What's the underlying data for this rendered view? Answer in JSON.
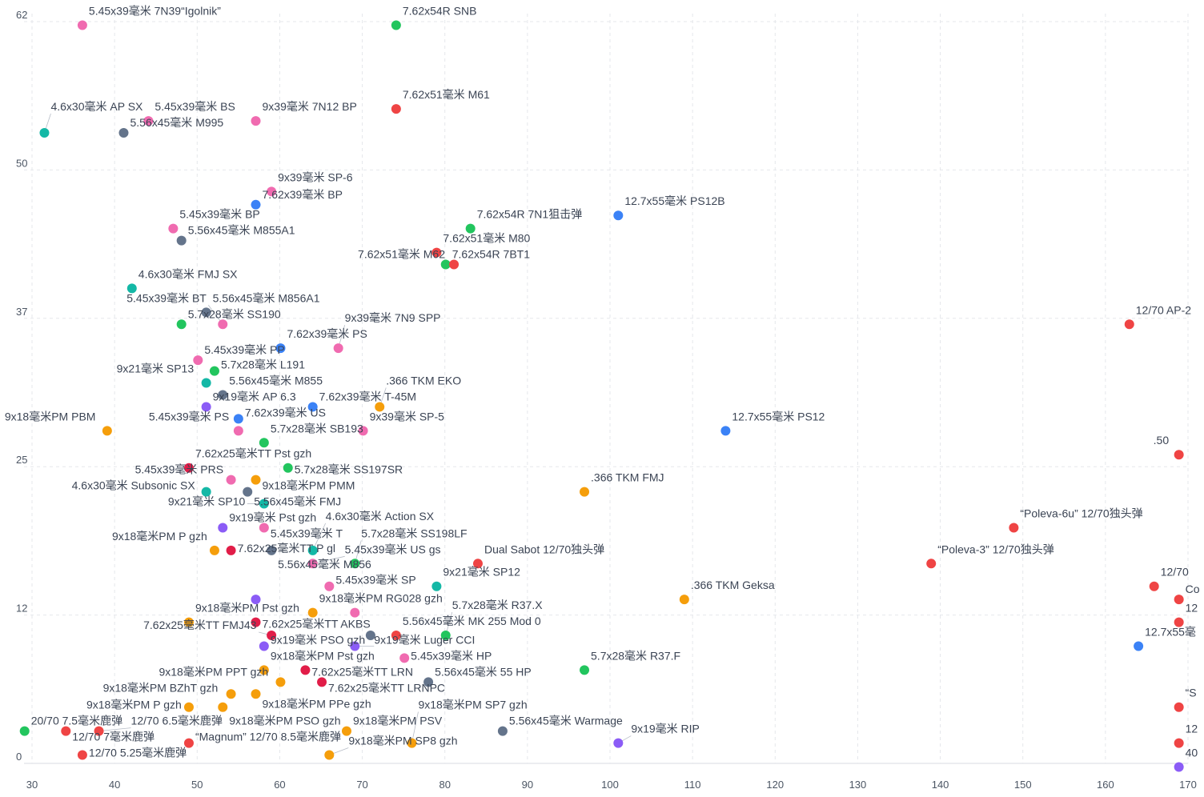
{
  "chart_data": {
    "type": "scatter",
    "title": "",
    "xlabel": "",
    "ylabel": "",
    "xlim": [
      30,
      170
    ],
    "ylim": [
      0,
      62
    ],
    "x_ticks": [
      30,
      40,
      50,
      60,
      70,
      80,
      90,
      100,
      110,
      120,
      130,
      140,
      150,
      160,
      170
    ],
    "x_tick_labels": [
      "30",
      "40",
      "50",
      "60",
      "70",
      "80",
      "90",
      "100",
      "110",
      "120",
      "130",
      "140",
      "150",
      "160",
      "170"
    ],
    "y_ticks": [
      0,
      12.4,
      24.8,
      37.2,
      49.6,
      62
    ],
    "y_tick_labels": [
      "0",
      "12",
      "25",
      "37",
      "50",
      "62"
    ],
    "grid": true,
    "legend": "none",
    "colors": {
      "pink": "#f06bb0",
      "green": "#22c55e",
      "red": "#ef4444",
      "crimson": "#e11d48",
      "teal": "#14b8a6",
      "slate": "#64748b",
      "blue": "#3b82f6",
      "orange": "#f59e0b",
      "violet": "#8b5cf6"
    },
    "points": [
      {
        "x": 36.1,
        "y": 61.7,
        "c": "pink",
        "label": "5.45x39毫米 7N39“Igolnik”"
      },
      {
        "x": 74.1,
        "y": 61.7,
        "c": "green",
        "label": "7.62x54R SNB"
      },
      {
        "x": 74.1,
        "y": 54.7,
        "c": "red",
        "label": "7.62x51毫米 M61"
      },
      {
        "x": 57.1,
        "y": 53.7,
        "c": "pink",
        "label": "9x39毫米 7N12 BP"
      },
      {
        "x": 44.1,
        "y": 53.7,
        "c": "pink",
        "label": "5.45x39毫米 BS"
      },
      {
        "x": 41.1,
        "y": 52.7,
        "c": "slate",
        "label": "5.56x45毫米 M995"
      },
      {
        "x": 31.5,
        "y": 52.7,
        "c": "teal",
        "label": "4.6x30毫米 AP SX"
      },
      {
        "x": 59.0,
        "y": 47.8,
        "c": "pink",
        "label": "9x39毫米 SP-6"
      },
      {
        "x": 57.1,
        "y": 46.7,
        "c": "blue",
        "label": "7.62x39毫米 BP"
      },
      {
        "x": 47.1,
        "y": 44.7,
        "c": "pink",
        "label": "5.45x39毫米 BP"
      },
      {
        "x": 48.1,
        "y": 43.7,
        "c": "slate",
        "label": "5.56x45毫米 M855A1"
      },
      {
        "x": 83.1,
        "y": 44.7,
        "c": "green",
        "label": "7.62x54R 7N1狙击弹"
      },
      {
        "x": 101.0,
        "y": 45.8,
        "c": "blue",
        "label": "12.7x55毫米 PS12B"
      },
      {
        "x": 79.0,
        "y": 42.7,
        "c": "red",
        "label": "7.62x51毫米 M80"
      },
      {
        "x": 80.1,
        "y": 41.7,
        "c": "green",
        "label": "7.62x54R 7BT1"
      },
      {
        "x": 81.1,
        "y": 41.7,
        "c": "red",
        "label": "7.62x51毫米 M62"
      },
      {
        "x": 42.1,
        "y": 39.7,
        "c": "teal",
        "label": "4.6x30毫米 FMJ SX"
      },
      {
        "x": 51.1,
        "y": 37.7,
        "c": "slate",
        "label": "5.56x45毫米 M856A1"
      },
      {
        "x": 48.1,
        "y": 36.7,
        "c": "green",
        "label": "5.7x28毫米 SS190"
      },
      {
        "x": 53.1,
        "y": 36.7,
        "c": "pink",
        "label": "5.45x39毫米 BT"
      },
      {
        "x": 60.1,
        "y": 34.7,
        "c": "blue",
        "label": "7.62x39毫米 PS"
      },
      {
        "x": 67.1,
        "y": 34.7,
        "c": "pink",
        "label": "9x39毫米 7N9 SPP"
      },
      {
        "x": 50.1,
        "y": 33.7,
        "c": "pink",
        "label": "5.45x39毫米 PP"
      },
      {
        "x": 52.1,
        "y": 32.8,
        "c": "green",
        "label": "5.7x28毫米 L191"
      },
      {
        "x": 51.1,
        "y": 31.8,
        "c": "teal",
        "label": "9x21毫米 SP13"
      },
      {
        "x": 53.1,
        "y": 30.8,
        "c": "slate",
        "label": "5.56x45毫米 M855"
      },
      {
        "x": 51.1,
        "y": 29.8,
        "c": "violet",
        "label": "9x19毫米 AP 6.3"
      },
      {
        "x": 64.0,
        "y": 29.8,
        "c": "blue",
        "label": "7.62x39毫米 T-45M"
      },
      {
        "x": 72.1,
        "y": 29.8,
        "c": "orange",
        "label": ".366 TKM EKO"
      },
      {
        "x": 55.0,
        "y": 28.8,
        "c": "blue",
        "label": "7.62x39毫米 US"
      },
      {
        "x": 55.0,
        "y": 27.8,
        "c": "pink",
        "label": "5.45x39毫米 PS"
      },
      {
        "x": 70.1,
        "y": 27.8,
        "c": "pink",
        "label": "9x39毫米 SP-5"
      },
      {
        "x": 39.1,
        "y": 27.8,
        "c": "orange",
        "label": "9x18毫米PM PBM"
      },
      {
        "x": 58.1,
        "y": 26.8,
        "c": "green",
        "label": "5.7x28毫米 SB193"
      },
      {
        "x": 49.0,
        "y": 24.7,
        "c": "crimson",
        "label": "7.62x25毫米TT Pst gzh"
      },
      {
        "x": 61.0,
        "y": 24.7,
        "c": "green",
        "label": "5.7x28毫米 SS197SR"
      },
      {
        "x": 54.1,
        "y": 23.7,
        "c": "pink",
        "label": "5.45x39毫米 PRS"
      },
      {
        "x": 57.1,
        "y": 23.7,
        "c": "orange",
        "label": "9x18毫米PM PMM"
      },
      {
        "x": 51.1,
        "y": 22.7,
        "c": "teal",
        "label": "4.6x30毫米 Subsonic SX"
      },
      {
        "x": 56.1,
        "y": 22.7,
        "c": "slate",
        "label": "5.56x45毫米 FMJ"
      },
      {
        "x": 58.1,
        "y": 21.7,
        "c": "teal",
        "label": "9x21毫米 SP10"
      },
      {
        "x": 53.1,
        "y": 19.7,
        "c": "violet",
        "label": "9x19毫米 Pst gzh"
      },
      {
        "x": 58.1,
        "y": 19.7,
        "c": "pink",
        "label": "5.45x39毫米 T"
      },
      {
        "x": 52.1,
        "y": 17.8,
        "c": "orange",
        "label": "9x18毫米PM P gzh"
      },
      {
        "x": 54.1,
        "y": 17.8,
        "c": "crimson",
        "label": "7.62x25毫米TT P gl"
      },
      {
        "x": 59.0,
        "y": 17.8,
        "c": "slate",
        "label": "5.56x45毫米 M856"
      },
      {
        "x": 64.0,
        "y": 17.8,
        "c": "teal",
        "label": "4.6x30毫米 Action SX"
      },
      {
        "x": 64.0,
        "y": 16.7,
        "c": "pink",
        "label": "5.45x39毫米 US gs"
      },
      {
        "x": 69.1,
        "y": 16.7,
        "c": "green",
        "label": "5.7x28毫米 SS198LF"
      },
      {
        "x": 84.0,
        "y": 16.7,
        "c": "red",
        "label": "Dual Sabot 12/70独头弹"
      },
      {
        "x": 66.0,
        "y": 14.8,
        "c": "pink",
        "label": "5.45x39毫米 SP"
      },
      {
        "x": 79.0,
        "y": 14.8,
        "c": "teal",
        "label": "9x21毫米 SP12"
      },
      {
        "x": 57.1,
        "y": 13.7,
        "c": "violet",
        "label": ""
      },
      {
        "x": 64.0,
        "y": 12.6,
        "c": "orange",
        "label": "9x18毫米PM RG028 gzh"
      },
      {
        "x": 69.1,
        "y": 12.6,
        "c": "pink",
        "label": ""
      },
      {
        "x": 49.0,
        "y": 11.8,
        "c": "orange",
        "label": "9x18毫米PM Pst gzh"
      },
      {
        "x": 57.1,
        "y": 11.8,
        "c": "crimson",
        "label": "7.62x25毫米TT AKBS"
      },
      {
        "x": 59.0,
        "y": 10.7,
        "c": "crimson",
        "label": "7.62x25毫米TT FMJ43"
      },
      {
        "x": 74.1,
        "y": 10.7,
        "c": "red",
        "label": "5.56x45毫米 MK 255 Mod 0"
      },
      {
        "x": 80.1,
        "y": 10.7,
        "c": "green",
        "label": "5.7x28毫米 R37.X"
      },
      {
        "x": 71.0,
        "y": 10.7,
        "c": "slate",
        "label": ""
      },
      {
        "x": 58.1,
        "y": 9.8,
        "c": "violet",
        "label": "9x19毫米 PSO gzh"
      },
      {
        "x": 69.1,
        "y": 9.8,
        "c": "violet",
        "label": "9x19毫米 Luger CCI"
      },
      {
        "x": 75.1,
        "y": 8.8,
        "c": "pink",
        "label": "5.45x39毫米 HP"
      },
      {
        "x": 58.1,
        "y": 7.8,
        "c": "orange",
        "label": "9x18毫米PM Pst gzh"
      },
      {
        "x": 63.1,
        "y": 7.8,
        "c": "crimson",
        "label": "7.62x25毫米TT LRN"
      },
      {
        "x": 60.1,
        "y": 6.8,
        "c": "orange",
        "label": "9x18毫米PM PPT gzh"
      },
      {
        "x": 65.1,
        "y": 6.8,
        "c": "crimson",
        "label": "7.62x25毫米TT LRNPC"
      },
      {
        "x": 78.0,
        "y": 6.8,
        "c": "slate",
        "label": "5.56x45毫米 55 HP"
      },
      {
        "x": 54.1,
        "y": 5.8,
        "c": "orange",
        "label": "9x18毫米PM BZhT gzh"
      },
      {
        "x": 57.1,
        "y": 5.8,
        "c": "orange",
        "label": "9x18毫米PM PPe gzh"
      },
      {
        "x": 49.0,
        "y": 4.7,
        "c": "orange",
        "label": "9x18毫米PM P gzh"
      },
      {
        "x": 53.1,
        "y": 4.7,
        "c": "orange",
        "label": "9x18毫米PM PSO gzh"
      },
      {
        "x": 29.1,
        "y": 2.7,
        "c": "green",
        "label": "20/70 7.5毫米鹿弹"
      },
      {
        "x": 34.1,
        "y": 2.7,
        "c": "red",
        "label": "12/70 7毫米鹿弹"
      },
      {
        "x": 38.1,
        "y": 2.7,
        "c": "red",
        "label": "12/70 6.5毫米鹿弹"
      },
      {
        "x": 49.0,
        "y": 1.7,
        "c": "red",
        "label": "“Magnum” 12/70 8.5毫米鹿弹"
      },
      {
        "x": 36.1,
        "y": 0.7,
        "c": "red",
        "label": "12/70 5.25毫米鹿弹"
      },
      {
        "x": 68.1,
        "y": 2.7,
        "c": "orange",
        "label": "9x18毫米PM PSV"
      },
      {
        "x": 66.0,
        "y": 0.7,
        "c": "orange",
        "label": "9x18毫米PM SP8 gzh"
      },
      {
        "x": 76.0,
        "y": 1.7,
        "c": "orange",
        "label": "9x18毫米PM SP7 gzh"
      },
      {
        "x": 87.0,
        "y": 2.7,
        "c": "slate",
        "label": "5.56x45毫米 Warmage"
      },
      {
        "x": 101.0,
        "y": 1.7,
        "c": "violet",
        "label": "9x19毫米 RIP"
      },
      {
        "x": 96.9,
        "y": 22.7,
        "c": "orange",
        "label": ".366 TKM FMJ"
      },
      {
        "x": 109.0,
        "y": 13.7,
        "c": "orange",
        "label": ".366 TKM Geksa"
      },
      {
        "x": 114.0,
        "y": 27.8,
        "c": "blue",
        "label": "12.7x55毫米 PS12"
      },
      {
        "x": 96.9,
        "y": 7.8,
        "c": "green",
        "label": "5.7x28毫米 R37.F"
      },
      {
        "x": 148.9,
        "y": 19.7,
        "c": "red",
        "label": "“Poleva-6u” 12/70独头弹"
      },
      {
        "x": 138.9,
        "y": 16.7,
        "c": "red",
        "label": "“Poleva-3” 12/70独头弹"
      },
      {
        "x": 162.9,
        "y": 36.7,
        "c": "red",
        "label": "12/70 AP-2"
      },
      {
        "x": 168.9,
        "y": 25.8,
        "c": "red",
        "label": ".50"
      },
      {
        "x": 165.9,
        "y": 14.8,
        "c": "red",
        "label": "12/70"
      },
      {
        "x": 168.9,
        "y": 13.7,
        "c": "red",
        "label": "Co"
      },
      {
        "x": 168.9,
        "y": 11.8,
        "c": "red",
        "label": "12"
      },
      {
        "x": 164.0,
        "y": 9.8,
        "c": "blue",
        "label": "12.7x55毫"
      },
      {
        "x": 168.9,
        "y": 4.7,
        "c": "red",
        "label": "“S"
      },
      {
        "x": 168.9,
        "y": 1.7,
        "c": "red",
        "label": "12"
      },
      {
        "x": 168.9,
        "y": -0.3,
        "c": "violet",
        "label": "40"
      }
    ]
  }
}
